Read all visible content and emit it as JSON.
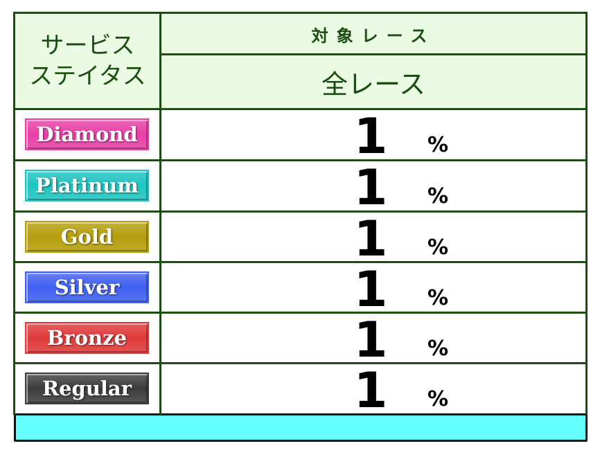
{
  "header": {
    "status_label": "サービス\nステイタス",
    "status_line1": "サービス",
    "status_line2": "ステイタス",
    "target_label": "対象レース",
    "target_value": "全レース"
  },
  "rows": [
    {
      "status": "Diamond",
      "value": "1",
      "unit": "%",
      "color": "#e83fa6"
    },
    {
      "status": "Platinum",
      "value": "1",
      "unit": "%",
      "color": "#1fc4c0"
    },
    {
      "status": "Gold",
      "value": "1",
      "unit": "%",
      "color": "#b49e0c"
    },
    {
      "status": "Silver",
      "value": "1",
      "unit": "%",
      "color": "#3f5ff0"
    },
    {
      "status": "Bronze",
      "value": "1",
      "unit": "%",
      "color": "#de3a3a"
    },
    {
      "status": "Regular",
      "value": "1",
      "unit": "%",
      "color": "#3c3c3c"
    }
  ],
  "colors": {
    "header_bg": "#eafae3",
    "border": "#1a4d0f",
    "footer_bg": "#66ffff"
  }
}
